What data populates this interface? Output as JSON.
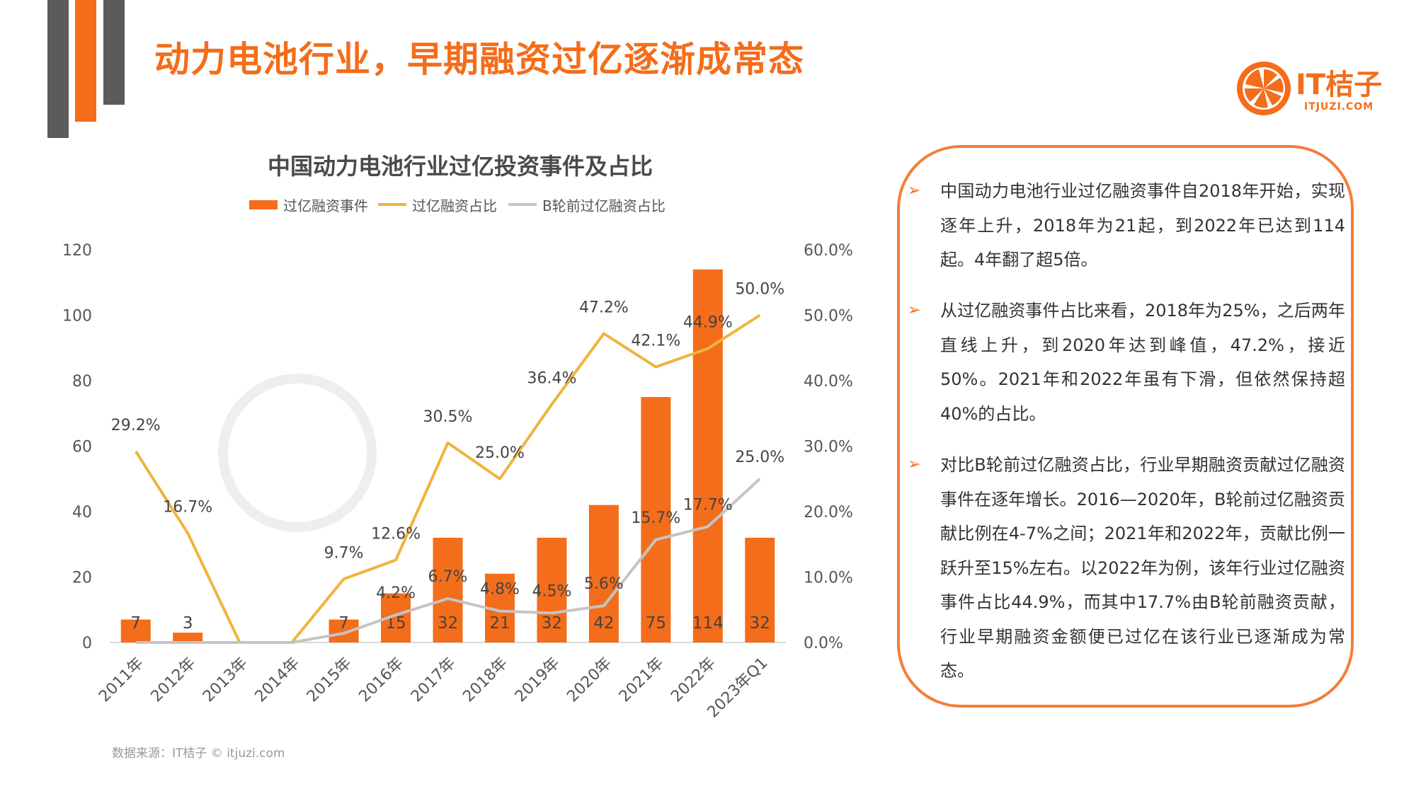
{
  "page": {
    "title": "动力电池行业，早期融资过亿逐渐成常态",
    "source": "数据来源：IT桔子 © itjuzi.com"
  },
  "logo": {
    "name": "IT桔子",
    "sub": "ITJUZI.COM"
  },
  "colors": {
    "accent": "#f46d1a",
    "dark_gray": "#5b5b5b",
    "line_yellow": "#f0b43c",
    "line_gray": "#c4c4c4"
  },
  "chart_data": {
    "type": "bar",
    "title": "中国动力电池行业过亿投资事件及占比",
    "categories": [
      "2011年",
      "2012年",
      "2013年",
      "2014年",
      "2015年",
      "2016年",
      "2017年",
      "2018年",
      "2019年",
      "2020年",
      "2021年",
      "2022年",
      "2023年Q1"
    ],
    "y_left": {
      "min": 0,
      "max": 120,
      "ticks": [
        "0",
        "20",
        "40",
        "60",
        "80",
        "100",
        "120"
      ]
    },
    "y_right": {
      "min": 0,
      "max": 60,
      "ticks": [
        "0.0%",
        "10.0%",
        "20.0%",
        "30.0%",
        "40.0%",
        "50.0%",
        "60.0%"
      ]
    },
    "legend_position": "top",
    "series": [
      {
        "name": "过亿融资事件",
        "type": "bar",
        "axis": "left",
        "color": "#f46d1a",
        "values": [
          7,
          3,
          0,
          0,
          7,
          15,
          32,
          21,
          32,
          42,
          75,
          114,
          32
        ],
        "labels": [
          "7",
          "3",
          "",
          "",
          "7",
          "15",
          "32",
          "21",
          "32",
          "42",
          "75",
          "114",
          "32"
        ]
      },
      {
        "name": "过亿融资占比",
        "type": "line",
        "axis": "right",
        "color": "#f0b43c",
        "values": [
          29.2,
          16.7,
          0,
          0,
          9.7,
          12.6,
          30.5,
          25.0,
          36.4,
          47.2,
          42.1,
          44.9,
          50.0
        ],
        "labels": [
          "29.2%",
          "16.7%",
          "",
          "",
          "9.7%",
          "12.6%",
          "30.5%",
          "25.0%",
          "36.4%",
          "47.2%",
          "42.1%",
          "44.9%",
          "50.0%"
        ]
      },
      {
        "name": "B轮前过亿融资占比",
        "type": "line",
        "axis": "right",
        "color": "#c4c4c4",
        "values": [
          0,
          0,
          0,
          0,
          1.4,
          4.2,
          6.7,
          4.8,
          4.5,
          5.6,
          15.7,
          17.7,
          25.0
        ],
        "labels": [
          "",
          "",
          "",
          "",
          "",
          "4.2%",
          "6.7%",
          "4.8%",
          "4.5%",
          "5.6%",
          "15.7%",
          "17.7%",
          "25.0%"
        ]
      }
    ]
  },
  "panel": {
    "bullets": [
      {
        "text": "中国动力电池行业过亿融资事件自2018年开始，实现逐年上升，2018年为21起，到2022年已达到114起。4年翻了超5倍。"
      },
      {
        "text": "从过亿融资事件占比来看，2018年为25%，之后两年直线上升，到2020年达到峰值，47.2%，接近50%。2021年和2022年虽有下滑，但依然保持超40%的占比。"
      },
      {
        "text": "对比B轮前过亿融资占比，行业早期融资贡献过亿融资事件在逐年增长。2016—2020年，B轮前过亿融资贡献比例在4-7%之间；2021年和2022年，贡献比例一跃升至15%左右。以2022年为例，该年行业过亿融资事件占比44.9%，而其中17.7%由B轮前融资贡献，行业早期融资金额便已过亿在该行业已逐渐成为常态。"
      }
    ]
  }
}
